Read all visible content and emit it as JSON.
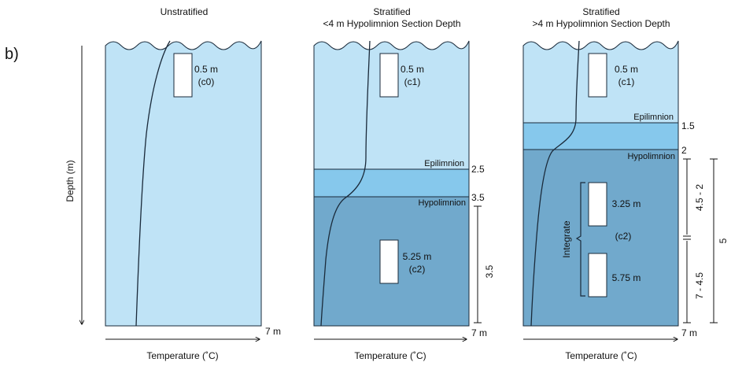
{
  "figure_label": "b)",
  "panels": [
    {
      "title_lines": [
        "Unstratified"
      ],
      "samples": [
        {
          "depth": "0.5 m",
          "code": "(c0)"
        }
      ],
      "x_axis_label": "Temperature (˚C)",
      "x_axis_end": "7 m",
      "y_axis_label": "Depth (m)"
    },
    {
      "title_lines": [
        "Stratified",
        "<4 m Hypolimnion Section Depth"
      ],
      "samples": [
        {
          "depth": "0.5 m",
          "code": "(c1)"
        },
        {
          "depth": "5.25 m",
          "code": "(c2)"
        }
      ],
      "layer_labels": {
        "epilimnion": "Epilimnion",
        "hypolimnion": "Hypolimnion"
      },
      "depth_marks": [
        "2.5",
        "3.5"
      ],
      "bracket_label": "3.5",
      "x_axis_label": "Temperature (˚C)",
      "x_axis_end": "7 m"
    },
    {
      "title_lines": [
        "Stratified",
        ">4 m Hypolimnion Section Depth"
      ],
      "samples": [
        {
          "depth": "0.5 m",
          "code": "(c1)"
        },
        {
          "depth": "3.25 m",
          "code": ""
        },
        {
          "depth": "5.75 m",
          "code": ""
        }
      ],
      "composite_code": "(c2)",
      "integrate_label": "Integrate",
      "layer_labels": {
        "epilimnion": "Epilimnion",
        "hypolimnion": "Hypolimnion"
      },
      "depth_marks": [
        "1.5",
        "2"
      ],
      "bracket_upper": "4.5 - 2",
      "bracket_lower": "7 - 4.5",
      "bracket_total": "5",
      "x_axis_label": "Temperature (˚C)",
      "x_axis_end": "7 m"
    }
  ],
  "colors": {
    "light_water": "#bfe3f6",
    "metalimnion": "#86c8ec",
    "hypolimnion": "#71a9cc",
    "line": "#1a2a3a"
  }
}
